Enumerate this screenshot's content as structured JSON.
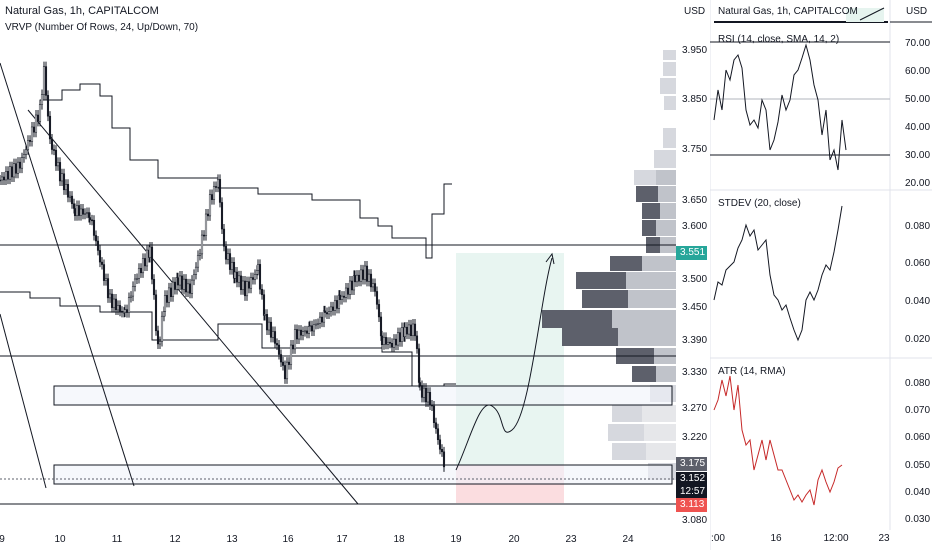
{
  "header": {
    "title": "Natural Gas, 1h, CAPITALCOM",
    "indicator": "VRVP (Number Of Rows, 24, Up/Down, 70)",
    "currency": "USD"
  },
  "price_axis": {
    "ticks": [
      "3.950",
      "3.850",
      "3.750",
      "3.650",
      "3.600",
      "3.500",
      "3.450",
      "3.390",
      "3.330",
      "3.270",
      "3.220",
      "3.080"
    ],
    "labels": {
      "level": "3.551",
      "upper": "3.175",
      "current": "3.152",
      "countdown": "12:57",
      "lower": "3.113"
    },
    "colors": {
      "level": "#26a69a",
      "upper": "#5d606b",
      "current": "#131722",
      "lower": "#ef5350"
    }
  },
  "time_axis": {
    "ticks": [
      "9",
      "10",
      "11",
      "12",
      "13",
      "16",
      "17",
      "18",
      "19",
      "20",
      "23",
      "24"
    ]
  },
  "right_panel": {
    "title": "Natural Gas, 1h, CAPITALCOM",
    "currency": "USD",
    "rsi": {
      "label": "RSI (14, close, SMA, 14, 2)",
      "ticks": [
        "70.00",
        "60.00",
        "50.00",
        "40.00",
        "30.00",
        "20.00"
      ]
    },
    "stdev": {
      "label": "STDEV (20, close)",
      "ticks": [
        "0.080",
        "0.060",
        "0.040",
        "0.020"
      ]
    },
    "atr": {
      "label": "ATR (14, RMA)",
      "ticks": [
        "0.080",
        "0.070",
        "0.060",
        "0.050",
        "0.040",
        "0.030"
      ]
    },
    "time_ticks": [
      ":00",
      "16",
      "12:00",
      "23"
    ]
  }
}
